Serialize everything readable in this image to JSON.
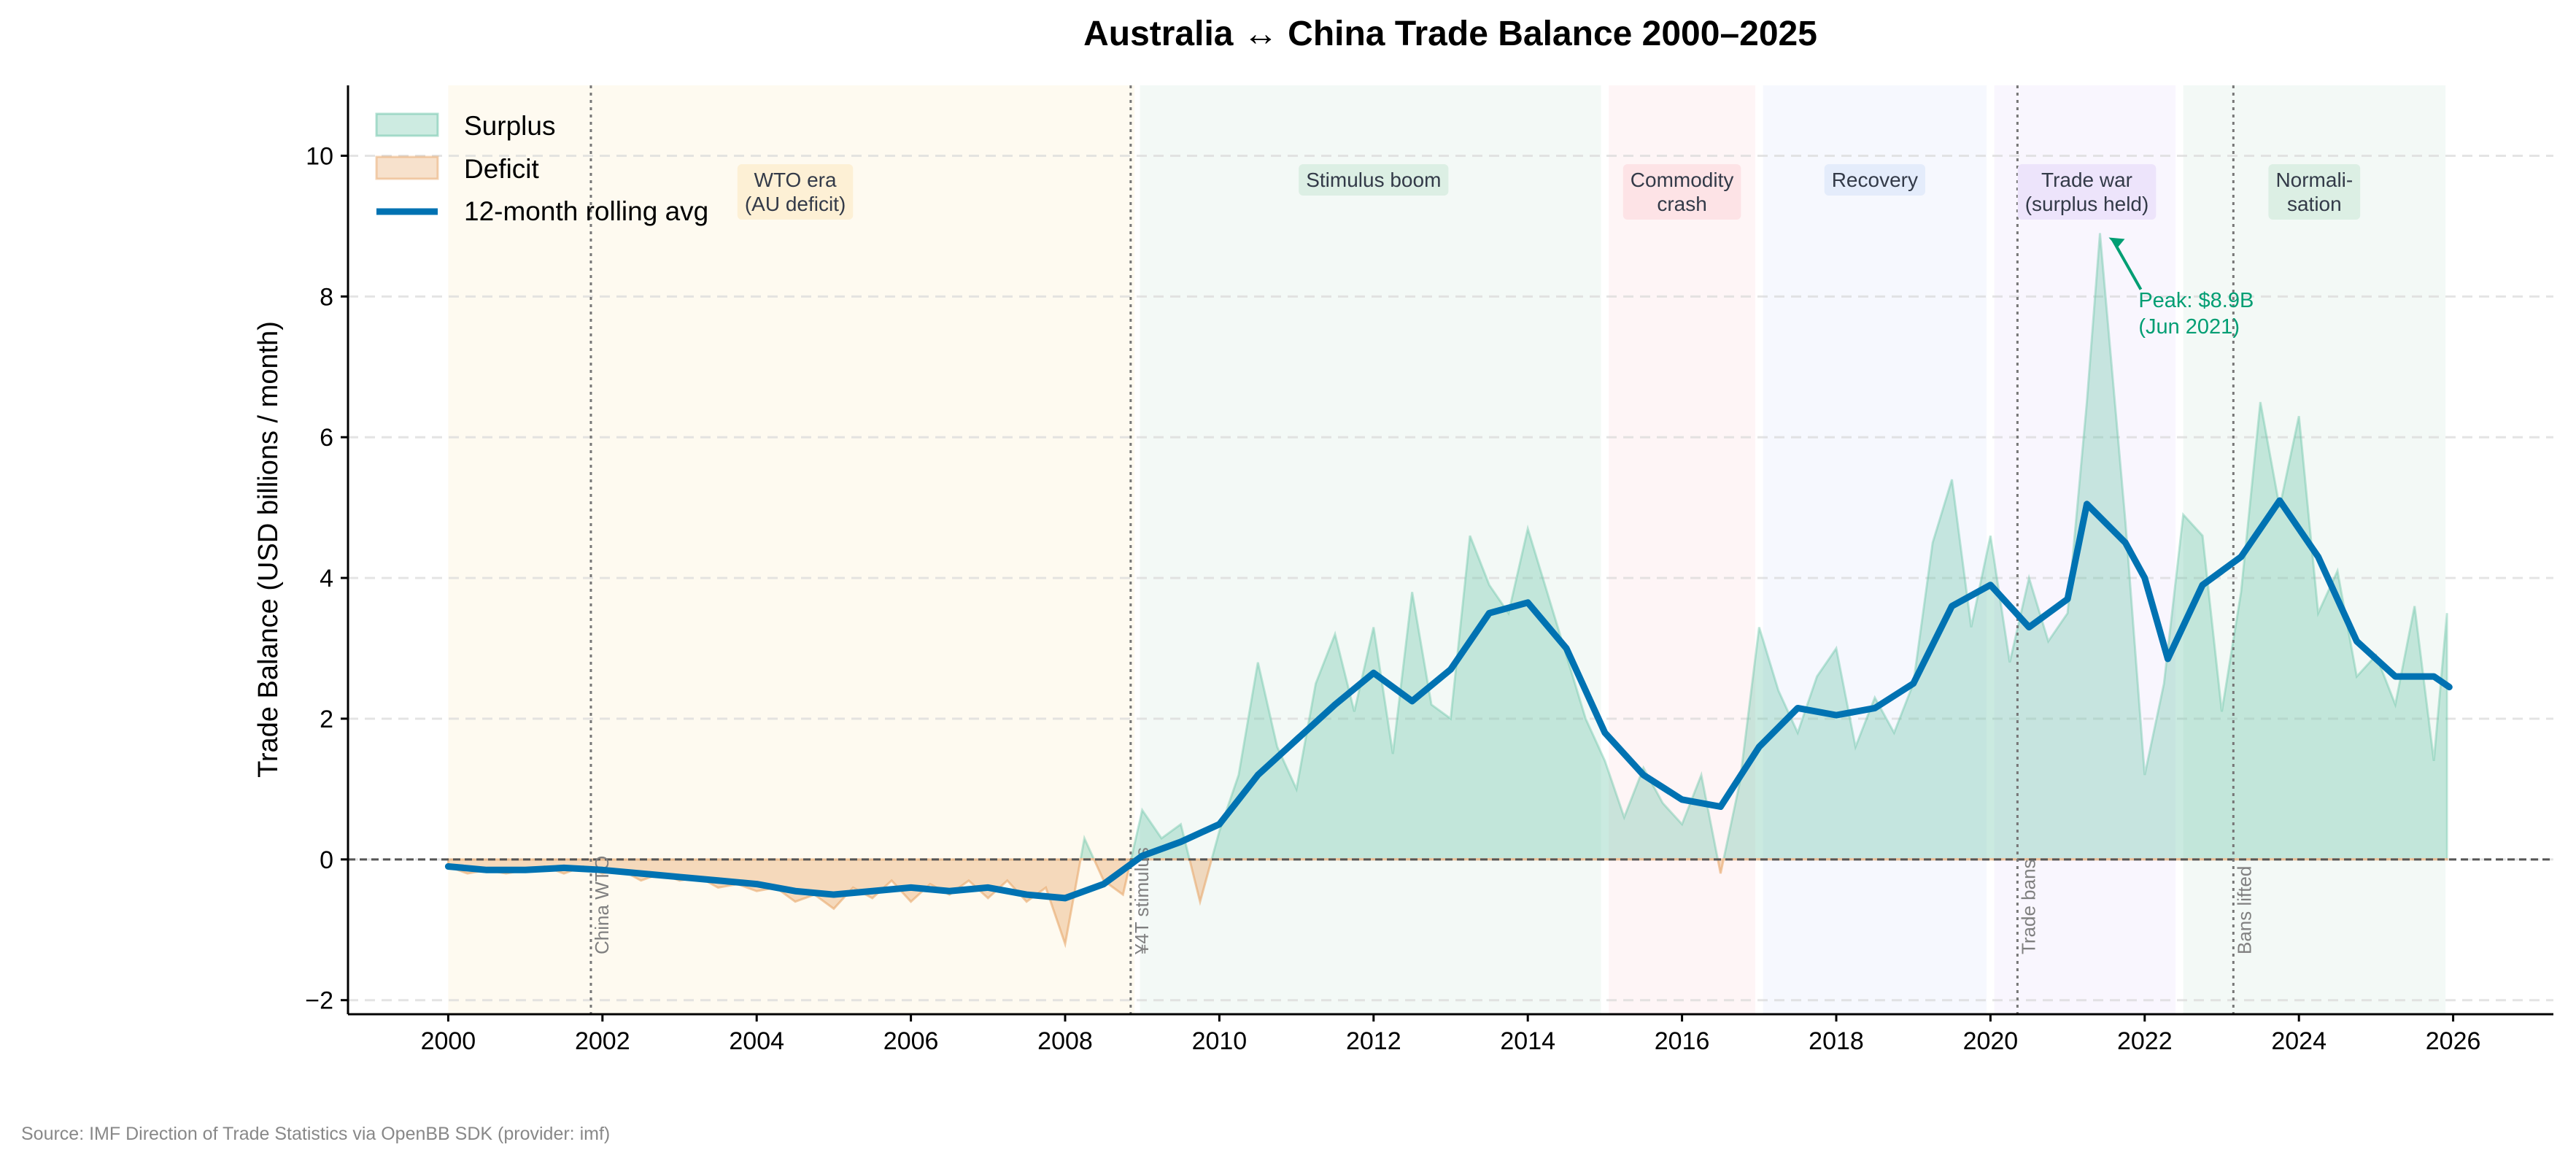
{
  "chart_data": {
    "type": "area",
    "title": "Australia ↔ China Trade Balance 2000–2025",
    "ylabel": "Trade Balance (USD billions / month)",
    "xlabel": "",
    "xlim": [
      1998.7,
      2027.3
    ],
    "ylim": [
      -2.2,
      11
    ],
    "xticks": [
      2000,
      2002,
      2004,
      2006,
      2008,
      2010,
      2012,
      2014,
      2016,
      2018,
      2020,
      2022,
      2024,
      2026
    ],
    "yticks": [
      -2,
      0,
      2,
      4,
      6,
      8,
      10
    ],
    "grid": "y dashed",
    "legend_position": "top-left",
    "legend": [
      "Surplus",
      "Deficit",
      "12-month rolling avg"
    ],
    "colors": {
      "surplus": "#66c2a5",
      "deficit": "#e8a86c",
      "rolling": "#0072b2",
      "annotation": "#009e73",
      "zero_line": "#555555"
    },
    "balance": {
      "x": [
        2000,
        2000.25,
        2000.5,
        2000.75,
        2001,
        2001.25,
        2001.5,
        2001.75,
        2002,
        2002.25,
        2002.5,
        2002.75,
        2003,
        2003.25,
        2003.5,
        2003.75,
        2004,
        2004.25,
        2004.5,
        2004.75,
        2005,
        2005.25,
        2005.5,
        2005.75,
        2006,
        2006.25,
        2006.5,
        2006.75,
        2007,
        2007.25,
        2007.5,
        2007.75,
        2008,
        2008.25,
        2008.5,
        2008.75,
        2009,
        2009.25,
        2009.5,
        2009.75,
        2010,
        2010.25,
        2010.5,
        2010.75,
        2011,
        2011.25,
        2011.5,
        2011.75,
        2012,
        2012.25,
        2012.5,
        2012.75,
        2013,
        2013.25,
        2013.5,
        2013.75,
        2014,
        2014.25,
        2014.5,
        2014.75,
        2015,
        2015.25,
        2015.5,
        2015.75,
        2016,
        2016.25,
        2016.5,
        2016.75,
        2017,
        2017.25,
        2017.5,
        2017.75,
        2018,
        2018.25,
        2018.5,
        2018.75,
        2019,
        2019.25,
        2019.5,
        2019.75,
        2020,
        2020.25,
        2020.5,
        2020.75,
        2021,
        2021.25,
        2021.42,
        2021.75,
        2022,
        2022.25,
        2022.5,
        2022.75,
        2023,
        2023.25,
        2023.5,
        2023.75,
        2024,
        2024.25,
        2024.5,
        2024.75,
        2025,
        2025.25,
        2025.5,
        2025.75,
        2025.92
      ],
      "values": [
        -0.1,
        -0.2,
        -0.15,
        -0.2,
        -0.15,
        -0.1,
        -0.2,
        -0.1,
        -0.2,
        -0.15,
        -0.3,
        -0.2,
        -0.3,
        -0.25,
        -0.4,
        -0.35,
        -0.45,
        -0.4,
        -0.6,
        -0.5,
        -0.7,
        -0.4,
        -0.55,
        -0.3,
        -0.6,
        -0.35,
        -0.5,
        -0.3,
        -0.55,
        -0.3,
        -0.6,
        -0.4,
        -1.2,
        0.3,
        -0.3,
        -0.5,
        0.7,
        0.3,
        0.5,
        -0.6,
        0.4,
        1.2,
        2.8,
        1.6,
        1.0,
        2.5,
        3.2,
        2.1,
        3.3,
        1.5,
        3.8,
        2.2,
        2.0,
        4.6,
        3.9,
        3.5,
        4.7,
        3.8,
        2.9,
        2.0,
        1.4,
        0.6,
        1.3,
        0.8,
        0.5,
        1.2,
        -0.2,
        1.1,
        3.3,
        2.4,
        1.8,
        2.6,
        3.0,
        1.6,
        2.3,
        1.8,
        2.5,
        4.5,
        5.4,
        3.3,
        4.6,
        2.8,
        4.0,
        3.1,
        3.5,
        6.5,
        8.9,
        4.8,
        1.2,
        2.5,
        4.9,
        4.6,
        2.1,
        3.8,
        6.5,
        5.0,
        6.3,
        3.5,
        4.1,
        2.6,
        2.9,
        2.2,
        3.6,
        1.4,
        3.5
      ]
    },
    "rolling_avg": {
      "x": [
        2000,
        2000.5,
        2001,
        2001.5,
        2002,
        2002.5,
        2003,
        2003.5,
        2004,
        2004.5,
        2005,
        2005.5,
        2006,
        2006.5,
        2007,
        2007.5,
        2008,
        2008.5,
        2009,
        2009.5,
        2010,
        2010.5,
        2011,
        2011.5,
        2012,
        2012.5,
        2013,
        2013.5,
        2014,
        2014.5,
        2015,
        2015.5,
        2016,
        2016.5,
        2017,
        2017.5,
        2018,
        2018.5,
        2019,
        2019.5,
        2020,
        2020.5,
        2021,
        2021.25,
        2021.75,
        2022,
        2022.3,
        2022.75,
        2023.25,
        2023.75,
        2024.25,
        2024.75,
        2025.25,
        2025.75,
        2025.95
      ],
      "values": [
        -0.1,
        -0.15,
        -0.15,
        -0.12,
        -0.15,
        -0.2,
        -0.25,
        -0.3,
        -0.35,
        -0.45,
        -0.5,
        -0.45,
        -0.4,
        -0.45,
        -0.4,
        -0.5,
        -0.55,
        -0.35,
        0.05,
        0.25,
        0.5,
        1.2,
        1.7,
        2.2,
        2.65,
        2.25,
        2.7,
        3.5,
        3.65,
        3.0,
        1.8,
        1.2,
        0.85,
        0.75,
        1.6,
        2.15,
        2.05,
        2.15,
        2.5,
        3.6,
        3.9,
        3.3,
        3.7,
        5.05,
        4.5,
        4.0,
        2.85,
        3.9,
        4.3,
        5.1,
        4.3,
        3.1,
        2.6,
        2.6,
        2.45
      ]
    },
    "periods": [
      {
        "label": [
          "WTO era",
          "(AU deficit)"
        ],
        "start": 2000,
        "end": 2008.9,
        "color": "#fdf0d5",
        "label_x": 2004.5
      },
      {
        "label": [
          "Stimulus boom"
        ],
        "start": 2008.97,
        "end": 2014.95,
        "color": "#dcefe4",
        "label_x": 2012.0
      },
      {
        "label": [
          "Commodity",
          "crash"
        ],
        "start": 2015.05,
        "end": 2016.95,
        "color": "#fde3e6",
        "label_x": 2016.0
      },
      {
        "label": [
          "Recovery"
        ],
        "start": 2017.05,
        "end": 2019.95,
        "color": "#e4ecfb",
        "label_x": 2018.5
      },
      {
        "label": [
          "Trade war",
          "(surplus held)"
        ],
        "start": 2020.05,
        "end": 2022.4,
        "color": "#ede4fb",
        "label_x": 2021.25
      },
      {
        "label": [
          "Normali-",
          "sation"
        ],
        "start": 2022.5,
        "end": 2025.9,
        "color": "#dcefe4",
        "label_x": 2024.2
      }
    ],
    "events": [
      {
        "label": "China WTO",
        "x": 2001.85
      },
      {
        "label": "¥4T stimulus",
        "x": 2008.85
      },
      {
        "label": "Trade bans",
        "x": 2020.35
      },
      {
        "label": "Bans lifted",
        "x": 2023.15
      }
    ],
    "annotation": {
      "lines": [
        "Peak: $8.9B",
        "(Jun 2021)"
      ],
      "x": 2021.42,
      "y": 8.9
    }
  },
  "source": "Source: IMF Direction of Trade Statistics via OpenBB SDK (provider: imf)"
}
